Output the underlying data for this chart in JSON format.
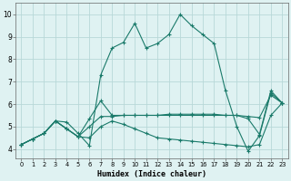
{
  "xlabel": "Humidex (Indice chaleur)",
  "bg_color": "#dff2f2",
  "grid_color": "#b8d8d8",
  "line_color": "#1a7a6a",
  "xlim": [
    -0.5,
    23.5
  ],
  "ylim": [
    3.6,
    10.5
  ],
  "yticks": [
    4,
    5,
    6,
    7,
    8,
    9,
    10
  ],
  "xticks": [
    0,
    1,
    2,
    3,
    4,
    5,
    6,
    7,
    8,
    9,
    10,
    11,
    12,
    13,
    14,
    15,
    16,
    17,
    18,
    19,
    20,
    21,
    22,
    23
  ],
  "lines": [
    {
      "x": [
        0,
        1,
        2,
        3,
        4,
        5,
        6,
        7,
        8,
        9,
        10,
        11,
        12,
        13,
        14,
        15,
        16,
        17,
        18,
        19,
        20,
        21,
        22,
        23
      ],
      "y": [
        4.2,
        4.45,
        4.7,
        5.25,
        5.2,
        4.7,
        4.15,
        7.3,
        8.5,
        8.75,
        9.6,
        8.5,
        8.7,
        9.1,
        10.0,
        9.5,
        9.1,
        8.7,
        6.6,
        5.0,
        3.9,
        4.6,
        6.5,
        6.05
      ]
    },
    {
      "x": [
        0,
        1,
        2,
        3,
        4,
        5,
        6,
        7,
        8,
        9,
        10,
        11,
        12,
        13,
        14,
        15,
        16,
        17,
        18,
        19,
        20,
        21,
        22,
        23
      ],
      "y": [
        4.2,
        4.45,
        4.7,
        5.25,
        4.9,
        4.55,
        5.0,
        5.45,
        5.45,
        5.5,
        5.5,
        5.5,
        5.5,
        5.55,
        5.55,
        5.55,
        5.55,
        5.55,
        5.5,
        5.5,
        5.45,
        5.4,
        6.4,
        6.05
      ]
    },
    {
      "x": [
        0,
        1,
        2,
        3,
        4,
        5,
        6,
        7,
        8,
        9,
        10,
        11,
        12,
        13,
        14,
        15,
        16,
        17,
        18,
        19,
        20,
        21,
        22,
        23
      ],
      "y": [
        4.2,
        4.45,
        4.7,
        5.25,
        4.9,
        4.55,
        5.35,
        6.15,
        5.5,
        5.5,
        5.5,
        5.5,
        5.5,
        5.5,
        5.5,
        5.5,
        5.5,
        5.5,
        5.5,
        5.5,
        5.35,
        4.65,
        6.6,
        6.05
      ]
    },
    {
      "x": [
        0,
        1,
        2,
        3,
        4,
        5,
        6,
        7,
        8,
        9,
        10,
        11,
        12,
        13,
        14,
        15,
        16,
        17,
        18,
        19,
        20,
        21,
        22,
        23
      ],
      "y": [
        4.2,
        4.45,
        4.7,
        5.25,
        4.9,
        4.55,
        4.5,
        5.0,
        5.25,
        5.1,
        4.9,
        4.7,
        4.5,
        4.45,
        4.4,
        4.35,
        4.3,
        4.25,
        4.2,
        4.15,
        4.1,
        4.2,
        5.5,
        6.05
      ]
    }
  ]
}
